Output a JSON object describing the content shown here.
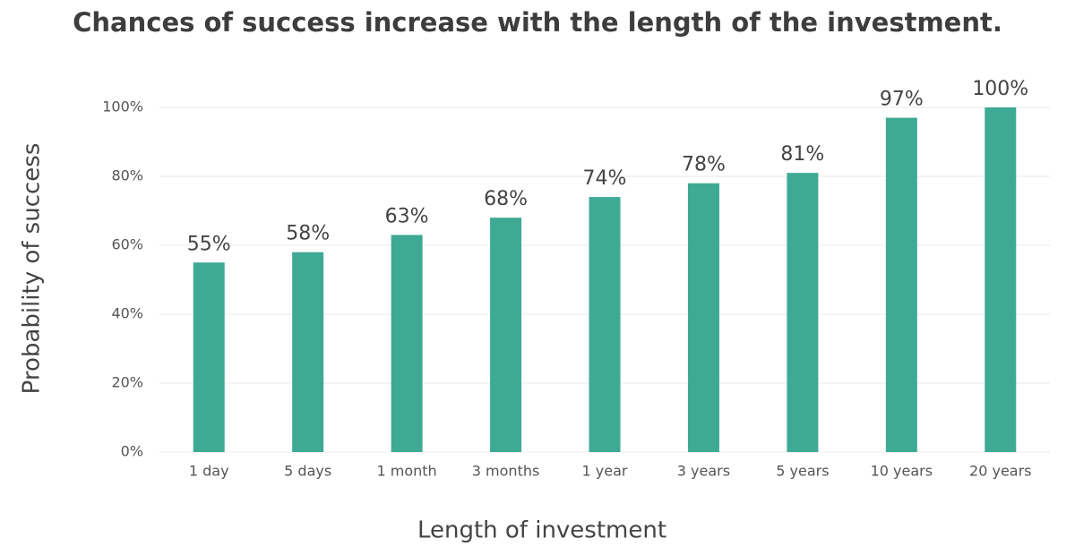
{
  "chart_data": {
    "type": "bar",
    "title": "Chances of success increase with the length of the investment.",
    "x_label": "Length of investment",
    "y_label": "Probability of success",
    "categories": [
      "1 day",
      "5 days",
      "1 month",
      "3 months",
      "1 year",
      "3 years",
      "5 years",
      "10 years",
      "20 years"
    ],
    "values": [
      55,
      58,
      63,
      68,
      74,
      78,
      81,
      97,
      100
    ],
    "value_labels": [
      "55%",
      "58%",
      "63%",
      "68%",
      "74%",
      "78%",
      "81%",
      "97%",
      "100%"
    ],
    "color": "#3eaa94",
    "ylim": [
      0,
      100
    ],
    "yticks": [
      {
        "value": 0,
        "label": "0%"
      },
      {
        "value": 20,
        "label": "20%"
      },
      {
        "value": 40,
        "label": "40%"
      },
      {
        "value": 60,
        "label": "60%"
      },
      {
        "value": 80,
        "label": "80%"
      },
      {
        "value": 100,
        "label": "100%"
      }
    ],
    "grid": true
  }
}
